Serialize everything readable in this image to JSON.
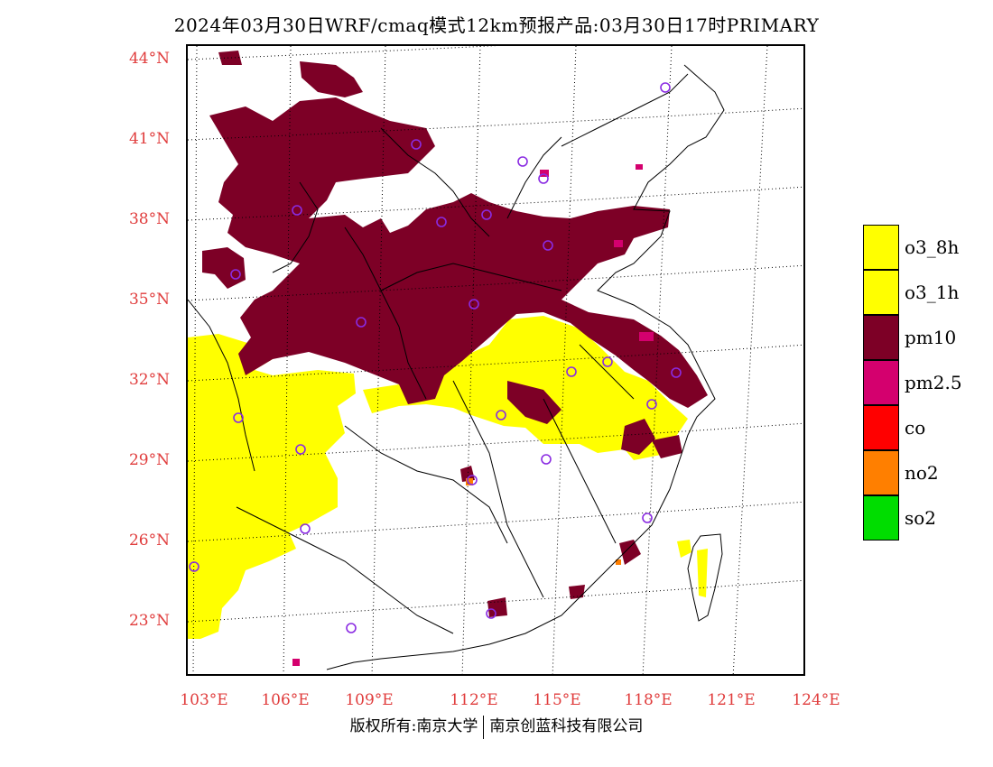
{
  "title": {
    "text": "2024年03月30日WRF/cmaq模式12km预报产品:03月30日17时",
    "mode": "PRIMARY"
  },
  "lat_labels": [
    "44°N",
    "41°N",
    "38°N",
    "35°N",
    "32°N",
    "29°N",
    "26°N",
    "23°N"
  ],
  "lon_labels": [
    "103°E",
    "106°E",
    "109°E",
    "112°E",
    "115°E",
    "118°E",
    "121°E",
    "124°E"
  ],
  "legend": [
    {
      "label": "o3_8h",
      "color": "#ffff00"
    },
    {
      "label": "o3_1h",
      "color": "#ffff00"
    },
    {
      "label": "pm10",
      "color": "#7d0026"
    },
    {
      "label": "pm2.5",
      "color": "#d4006e"
    },
    {
      "label": "co",
      "color": "#ff0000"
    },
    {
      "label": "no2",
      "color": "#ff7f00"
    },
    {
      "label": "so2",
      "color": "#00dd00"
    }
  ],
  "footer": {
    "left": "版权所有:南京大学",
    "right": "南京创蓝科技有限公司"
  },
  "colors": {
    "label_red": "#e03c3c",
    "pm10": "#7d0026",
    "pm25": "#d4006e",
    "o3": "#ffff00",
    "no2": "#ff7f00",
    "station": "#8a2be2"
  }
}
